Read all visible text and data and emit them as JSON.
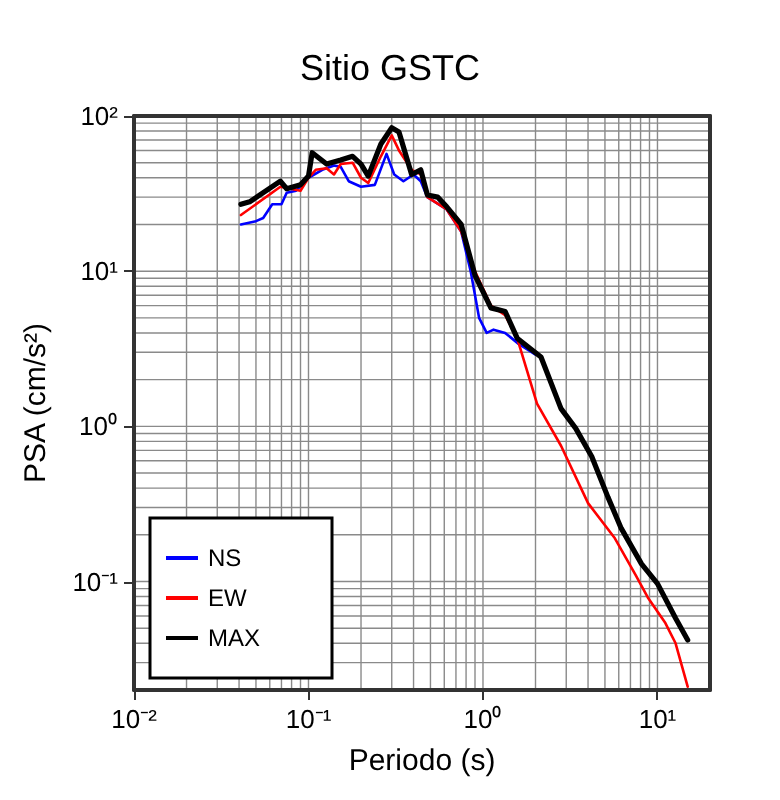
{
  "chart_data": {
    "type": "line",
    "title": "Sitio GSTC",
    "xlabel": "Periodo (s)",
    "ylabel": "PSA (cm/s²)",
    "log": "xy",
    "grid": true,
    "legend": "bottom left",
    "line_style": "solid",
    "marker": "none",
    "xlim": [
      0.01,
      20
    ],
    "ylim": [
      0.02,
      100
    ],
    "xticks": [
      {
        "value": 0.01,
        "label": "10⁻²"
      },
      {
        "value": 0.1,
        "label": "10⁻¹"
      },
      {
        "value": 1,
        "label": "10⁰"
      },
      {
        "value": 10,
        "label": "10¹"
      }
    ],
    "yticks": [
      {
        "value": 0.1,
        "label": "10⁻¹"
      },
      {
        "value": 1,
        "label": "10⁰"
      },
      {
        "value": 10,
        "label": "10¹"
      },
      {
        "value": 100,
        "label": "10²"
      }
    ],
    "series": [
      {
        "name": "NS",
        "color": "#0000ff",
        "x": [
          0.041,
          0.05,
          0.055,
          0.062,
          0.07,
          0.075,
          0.085,
          0.1,
          0.12,
          0.14,
          0.153,
          0.17,
          0.2,
          0.24,
          0.28,
          0.31,
          0.35,
          0.4,
          0.44,
          0.48,
          0.62,
          0.75,
          0.85,
          0.95,
          1.05,
          1.15,
          1.34,
          1.6,
          2.0
        ],
        "values": [
          20,
          21,
          22,
          27,
          27,
          32,
          33,
          40,
          45,
          48,
          47,
          38,
          35,
          36,
          57,
          42,
          38,
          42,
          38,
          30,
          25,
          18,
          10,
          5,
          4,
          4.2,
          4,
          3.4,
          2.9
        ]
      },
      {
        "name": "EW",
        "color": "#ff0000",
        "x": [
          0.041,
          0.069,
          0.09,
          0.1,
          0.11,
          0.127,
          0.14,
          0.153,
          0.179,
          0.2,
          0.22,
          0.26,
          0.3,
          0.33,
          0.39,
          0.44,
          0.48,
          0.62,
          0.75,
          0.9,
          1.11,
          1.34,
          1.57,
          2.04,
          2.8,
          4.0,
          5.7,
          7.5,
          8.8,
          11.1,
          12.7,
          14.9
        ],
        "values": [
          23,
          35,
          33,
          40,
          45,
          46,
          42,
          49,
          50,
          40,
          37,
          55,
          75,
          60,
          45,
          42,
          30,
          25,
          18,
          10,
          6,
          5.2,
          3.7,
          1.4,
          0.75,
          0.32,
          0.19,
          0.11,
          0.079,
          0.054,
          0.04,
          0.021
        ]
      },
      {
        "name": "MAX",
        "color": "#000000",
        "x": [
          0.041,
          0.046,
          0.069,
          0.075,
          0.09,
          0.1,
          0.105,
          0.127,
          0.153,
          0.179,
          0.2,
          0.22,
          0.26,
          0.3,
          0.33,
          0.39,
          0.44,
          0.48,
          0.55,
          0.62,
          0.75,
          0.9,
          1.11,
          1.34,
          1.57,
          2.15,
          2.8,
          3.4,
          4.2,
          5.2,
          6.2,
          8.1,
          10,
          12.7,
          14.9
        ],
        "values": [
          27,
          28,
          38,
          34,
          36,
          41,
          58,
          49,
          52,
          55,
          49,
          41,
          66,
          84,
          79,
          42,
          45,
          31,
          30,
          26,
          20,
          9.4,
          5.8,
          5.5,
          3.7,
          2.8,
          1.3,
          0.97,
          0.64,
          0.35,
          0.22,
          0.13,
          0.097,
          0.058,
          0.042
        ]
      }
    ]
  }
}
